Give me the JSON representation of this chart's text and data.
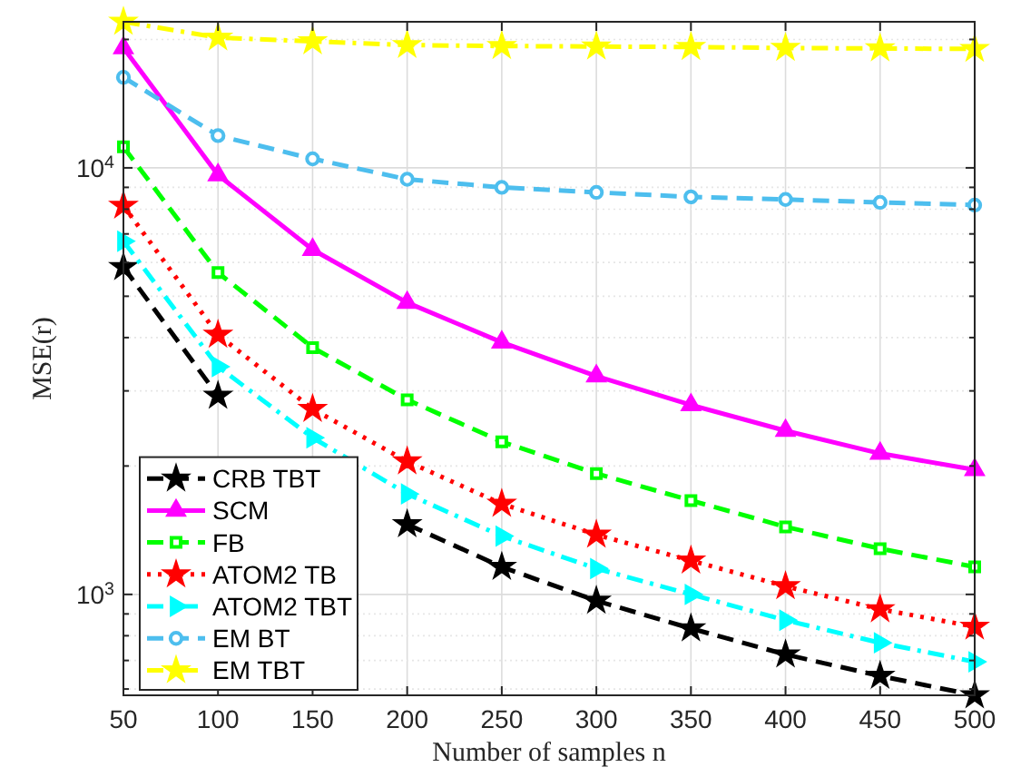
{
  "chart_data": {
    "type": "line",
    "xlabel": "Number of samples n",
    "ylabel": "MSE(r)",
    "x": [
      50,
      100,
      150,
      200,
      250,
      300,
      350,
      400,
      450,
      500
    ],
    "xlim": [
      50,
      500
    ],
    "xticks": [
      50,
      100,
      150,
      200,
      250,
      300,
      350,
      400,
      450,
      500
    ],
    "log": "y",
    "ylim": [
      580,
      22000
    ],
    "yticks": [
      {
        "value": 600,
        "label": null
      },
      {
        "value": 700,
        "label": null
      },
      {
        "value": 800,
        "label": null
      },
      {
        "value": 900,
        "label": null
      },
      {
        "value": 1000,
        "label": "10$^{3}$"
      },
      {
        "value": 2000,
        "label": null
      },
      {
        "value": 3000,
        "label": null
      },
      {
        "value": 4000,
        "label": null
      },
      {
        "value": 5000,
        "label": null
      },
      {
        "value": 6000,
        "label": null
      },
      {
        "value": 7000,
        "label": null
      },
      {
        "value": 8000,
        "label": null
      },
      {
        "value": 9000,
        "label": null
      },
      {
        "value": 10000,
        "label": "10$^{4}$"
      },
      {
        "value": 20000,
        "label": null
      }
    ],
    "grid": true,
    "legend": "bottom left",
    "series": [
      {
        "name": "CRB TBT",
        "color": "#000000",
        "marker": "star",
        "line_style": "dashed",
        "values": [
          5850,
          2920,
          null,
          1460,
          1160,
          966,
          832,
          723,
          644,
          580
        ]
      },
      {
        "name": "SCM",
        "color": "#ff00ff",
        "marker": "triangle",
        "line_style": "solid",
        "values": [
          19100,
          9620,
          6430,
          4830,
          3900,
          3250,
          2780,
          2420,
          2140,
          1960
        ]
      },
      {
        "name": "FB",
        "color": "#00ff00",
        "marker": "square",
        "line_style": "dashed",
        "values": [
          11200,
          5680,
          3790,
          2860,
          2280,
          1920,
          1660,
          1440,
          1280,
          1160
        ]
      },
      {
        "name": "ATOM2 TB",
        "color": "#ff0000",
        "marker": "star",
        "line_style": "dotted",
        "values": [
          8150,
          4060,
          2720,
          2050,
          1630,
          1380,
          1200,
          1045,
          923,
          840
        ]
      },
      {
        "name": "ATOM2 TBT",
        "color": "#00ffff",
        "marker": "triangle-right",
        "line_style": "dashdot",
        "values": [
          6730,
          3420,
          2330,
          1720,
          1370,
          1150,
          1000,
          870,
          770,
          695
        ]
      },
      {
        "name": "EM BT",
        "color": "#4dbeee",
        "marker": "circle",
        "line_style": "dashed",
        "values": [
          16300,
          11900,
          10500,
          9400,
          9000,
          8760,
          8550,
          8430,
          8300,
          8180
        ]
      },
      {
        "name": "EM TBT",
        "color": "#ffff00",
        "marker": "star",
        "line_style": "dashdot",
        "values": [
          22000,
          20200,
          19800,
          19400,
          19300,
          19250,
          19200,
          19100,
          19050,
          19000
        ]
      }
    ]
  }
}
